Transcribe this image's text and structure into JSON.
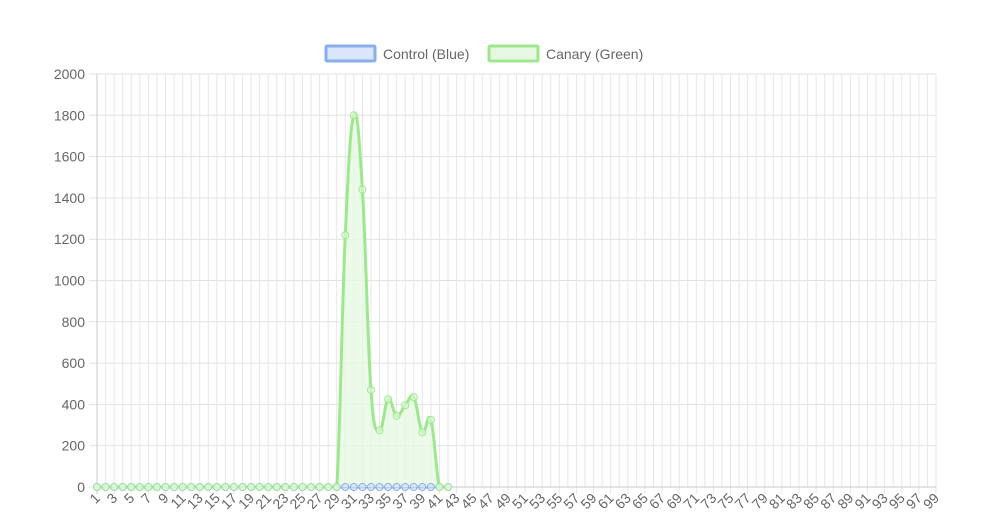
{
  "chart_data": {
    "type": "line",
    "title": "",
    "xlabel": "",
    "ylabel": "",
    "ylim": [
      0,
      2000
    ],
    "y_ticks": [
      0,
      200,
      400,
      600,
      800,
      1000,
      1200,
      1400,
      1600,
      1800,
      2000
    ],
    "x_count": 99,
    "x_tick_labels": [
      "1",
      "3",
      "5",
      "7",
      "9",
      "11",
      "13",
      "15",
      "17",
      "19",
      "21",
      "23",
      "25",
      "27",
      "29",
      "31",
      "33",
      "35",
      "37",
      "39",
      "41",
      "43",
      "45",
      "47",
      "49",
      "51",
      "53",
      "55",
      "57",
      "59",
      "61",
      "63",
      "65",
      "67",
      "69",
      "71",
      "73",
      "75",
      "77",
      "79",
      "81",
      "83",
      "85",
      "87",
      "89",
      "91",
      "93",
      "95",
      "97",
      "99"
    ],
    "grid": true,
    "legend_position": "top",
    "series": [
      {
        "name": "Control (Blue)",
        "color": "#8aaee9",
        "fill": "#d9e6fb",
        "values": [
          0,
          0,
          0,
          0,
          0,
          0,
          0,
          0,
          0,
          0,
          0,
          0,
          0,
          0,
          0,
          0,
          0,
          0,
          0,
          0,
          0,
          0,
          0,
          0,
          0,
          0,
          0,
          0,
          0,
          0,
          0,
          0,
          0,
          0,
          0,
          0,
          0,
          0,
          0,
          0,
          0,
          0
        ]
      },
      {
        "name": "Canary (Green)",
        "color": "#9de88f",
        "fill": "#e6f8e1",
        "values": [
          0,
          0,
          0,
          0,
          0,
          0,
          0,
          0,
          0,
          0,
          0,
          0,
          0,
          0,
          0,
          0,
          0,
          0,
          0,
          0,
          0,
          0,
          0,
          0,
          0,
          0,
          0,
          0,
          0,
          1220,
          1800,
          1440,
          470,
          275,
          425,
          345,
          395,
          435,
          265,
          325,
          0,
          0
        ]
      }
    ]
  }
}
